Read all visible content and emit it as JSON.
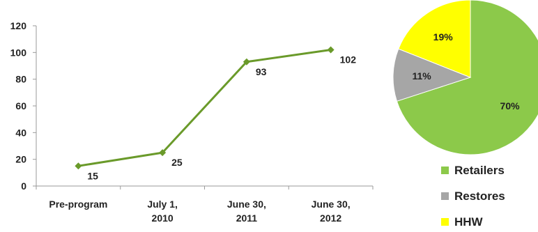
{
  "chart_data": [
    {
      "type": "line",
      "categories": [
        [
          "Pre-program"
        ],
        [
          "July 1,",
          "2010"
        ],
        [
          "June 30,",
          "2011"
        ],
        [
          "June 30,",
          "2012"
        ]
      ],
      "series": [
        {
          "values": [
            15,
            25,
            93,
            102
          ],
          "color": "#6a9a2a"
        }
      ],
      "data_labels": [
        "15",
        "25",
        "93",
        "102"
      ],
      "ylim": [
        0,
        120
      ],
      "yticks": [
        "0",
        "20",
        "40",
        "60",
        "80",
        "100",
        "120"
      ],
      "grid": false,
      "title": "",
      "xlabel": "",
      "ylabel": ""
    },
    {
      "type": "pie",
      "slices": [
        {
          "name": "Retailers",
          "value": 70,
          "label": "70%",
          "color": "#8cc94a"
        },
        {
          "name": "Restores",
          "value": 11,
          "label": "11%",
          "color": "#a6a6a6"
        },
        {
          "name": "HHW",
          "value": 19,
          "label": "19%",
          "color": "#ffff00"
        }
      ],
      "legend_position": "bottom"
    }
  ]
}
